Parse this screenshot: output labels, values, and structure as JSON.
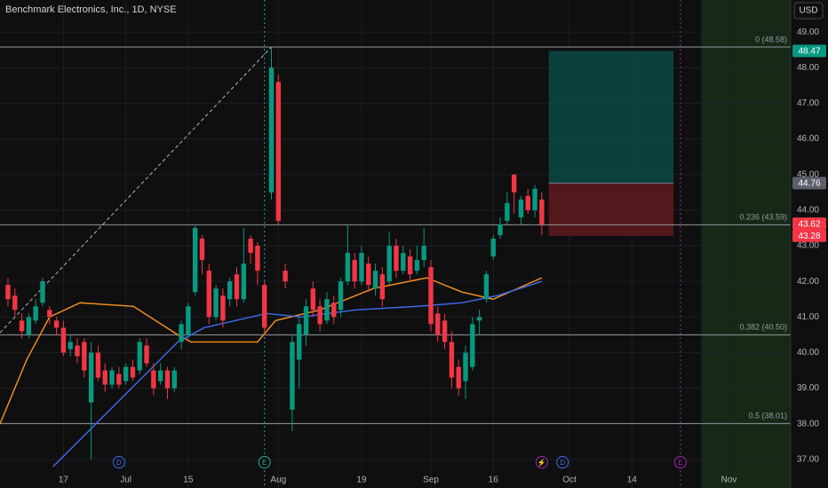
{
  "chart_data": {
    "type": "candlestick",
    "title": "Benchmark Electronics, Inc., 1D, NYSE",
    "currency": "USD",
    "up_color": "#089981",
    "down_color": "#f23645",
    "xlim": [
      -1.15,
      112.9
    ],
    "ylim": [
      36.2,
      49.9
    ],
    "xticks": [
      {
        "value": 8,
        "label": "17"
      },
      {
        "value": 17,
        "label": "Jul"
      },
      {
        "value": 26,
        "label": "15"
      },
      {
        "value": 39,
        "label": "Aug"
      },
      {
        "value": 51,
        "label": "19"
      },
      {
        "value": 61,
        "label": "Sep"
      },
      {
        "value": 70,
        "label": "16"
      },
      {
        "value": 81,
        "label": "Oct"
      },
      {
        "value": 90,
        "label": "14"
      },
      {
        "value": 104,
        "label": "Nov"
      }
    ],
    "yticks": [
      {
        "value": 37,
        "label": "37.00"
      },
      {
        "value": 38,
        "label": "38.00"
      },
      {
        "value": 39,
        "label": "39.00"
      },
      {
        "value": 40,
        "label": "40.00"
      },
      {
        "value": 41,
        "label": "41.00"
      },
      {
        "value": 42,
        "label": "42.00"
      },
      {
        "value": 43,
        "label": "43.00"
      },
      {
        "value": 44,
        "label": "44.00"
      },
      {
        "value": 45,
        "label": "45.00"
      },
      {
        "value": 46,
        "label": "46.00"
      },
      {
        "value": 47,
        "label": "47.00"
      },
      {
        "value": 48,
        "label": "48.00"
      },
      {
        "value": 49,
        "label": "49.00"
      }
    ],
    "grid": true,
    "open": [
      41.9,
      41.6,
      40.9,
      40.5,
      40.9,
      41.4,
      41.2,
      40.9,
      40.7,
      40.1,
      40.2,
      40.3,
      38.6,
      40.0,
      39.5,
      39.1,
      39.4,
      39.2,
      39.6,
      39.5,
      40.2,
      39.5,
      39.2,
      39.5,
      39.0,
      40.3,
      40.5,
      41.7,
      43.2,
      42.3,
      41.0,
      41.6,
      41.5,
      42.2,
      41.5,
      43.2,
      43.0,
      41.9,
      44.5,
      47.6,
      42.3,
      38.4,
      39.8,
      40.5,
      41.8,
      41.3,
      40.9,
      41.4,
      41.2,
      42.0,
      42.6,
      42.0,
      42.5,
      41.8,
      42.2,
      42.0,
      43.0,
      42.3,
      42.7,
      42.3,
      42.6,
      42.4,
      41.1,
      40.9,
      40.3,
      39.6,
      39.2,
      39.6,
      40.9,
      41.5,
      42.7,
      43.3,
      43.7,
      45.0,
      43.8,
      44.4,
      44.0,
      44.3
    ],
    "high": [
      42.1,
      41.8,
      41.1,
      41.1,
      41.5,
      42.1,
      41.3,
      41.0,
      40.9,
      40.5,
      40.4,
      40.4,
      40.3,
      40.2,
      39.7,
      39.6,
      39.6,
      39.7,
      39.8,
      40.4,
      40.4,
      39.7,
      39.7,
      39.6,
      39.6,
      40.9,
      41.4,
      43.6,
      43.3,
      42.5,
      41.9,
      41.8,
      42.1,
      42.4,
      43.5,
      43.3,
      43.1,
      42.0,
      48.58,
      47.8,
      42.5,
      40.5,
      41.0,
      41.5,
      42.0,
      41.5,
      41.7,
      41.6,
      42.1,
      43.6,
      42.8,
      43.0,
      42.7,
      42.5,
      42.4,
      43.4,
      43.2,
      43.0,
      42.9,
      43.0,
      43.5,
      42.6,
      41.3,
      41.1,
      40.6,
      39.8,
      40.2,
      41.0,
      41.2,
      42.3,
      43.3,
      43.8,
      44.5,
      45.0,
      44.4,
      44.6,
      44.7,
      44.5
    ],
    "low": [
      41.3,
      41.0,
      40.4,
      40.4,
      40.8,
      41.3,
      40.8,
      40.5,
      39.9,
      39.9,
      39.7,
      39.3,
      37.0,
      39.2,
      38.9,
      39.0,
      39.0,
      39.1,
      39.2,
      39.4,
      39.6,
      38.8,
      39.1,
      38.7,
      38.9,
      40.1,
      40.4,
      41.6,
      42.2,
      40.8,
      40.9,
      40.7,
      41.3,
      41.3,
      41.4,
      42.5,
      41.9,
      40.5,
      44.3,
      43.6,
      41.8,
      37.8,
      39.0,
      40.2,
      41.0,
      40.6,
      40.8,
      40.8,
      41.0,
      41.9,
      41.8,
      41.9,
      41.7,
      41.6,
      41.3,
      41.9,
      42.1,
      42.2,
      42.0,
      42.2,
      42.4,
      40.6,
      40.3,
      40.1,
      39.0,
      38.8,
      38.7,
      39.5,
      40.5,
      41.4,
      42.6,
      43.2,
      43.6,
      43.9,
      43.6,
      43.9,
      43.8,
      43.3
    ],
    "close": [
      41.5,
      41.2,
      40.6,
      41.0,
      41.3,
      42.0,
      41.0,
      40.7,
      40.0,
      40.3,
      39.9,
      39.5,
      40.0,
      39.3,
      39.1,
      39.5,
      39.1,
      39.6,
      39.3,
      40.3,
      39.7,
      39.0,
      39.5,
      39.0,
      39.5,
      40.8,
      41.3,
      43.5,
      42.6,
      41.0,
      41.8,
      40.9,
      42.0,
      41.5,
      42.5,
      42.8,
      42.3,
      40.7,
      48.0,
      43.7,
      42.0,
      40.3,
      40.8,
      41.3,
      41.2,
      40.8,
      41.5,
      41.0,
      42.0,
      42.8,
      42.0,
      42.8,
      41.9,
      42.3,
      41.5,
      43.0,
      42.3,
      42.8,
      42.2,
      42.6,
      43.0,
      40.8,
      40.5,
      40.3,
      39.3,
      39.0,
      40.0,
      40.8,
      41.0,
      42.2,
      43.2,
      43.6,
      44.2,
      44.5,
      44.3,
      44.0,
      44.6,
      43.6
    ],
    "series": [
      {
        "color": "#f7931e",
        "x": [
          -1.15,
          2.7,
          6,
          10.4,
          18.1,
          24.5,
          26.4,
          36,
          38.6,
          45,
          52.7,
          60.4,
          65.5,
          70,
          77
        ],
        "values": [
          38.0,
          39.8,
          41.0,
          41.4,
          41.3,
          40.5,
          40.3,
          40.3,
          40.9,
          41.2,
          41.8,
          42.1,
          41.7,
          41.5,
          42.1
        ]
      },
      {
        "color": "#3d6cf0",
        "x": [
          6.5,
          24.5,
          28.3,
          37.3,
          42.4,
          50.1,
          59.1,
          65.5,
          70.6,
          77
        ],
        "values": [
          36.8,
          40.3,
          40.7,
          41.1,
          41.0,
          41.2,
          41.3,
          41.4,
          41.6,
          42.0
        ]
      }
    ],
    "trend_line": {
      "x": [
        -1.15,
        38
      ],
      "values": [
        40.56,
        48.58
      ]
    },
    "fib_levels": [
      {
        "label": "0 (48.58)",
        "value": 48.58
      },
      {
        "label": "0.236 (43.59)",
        "value": 43.59
      },
      {
        "label": "0.382 (40.50)",
        "value": 40.5
      },
      {
        "label": "0.5 (38.01)",
        "value": 38.01
      }
    ],
    "position": {
      "x": [
        78,
        96
      ],
      "target": 48.47,
      "entry": 44.76,
      "stop": 43.28
    },
    "price_labels": [
      {
        "value": 48.47,
        "color": "#089981"
      },
      {
        "value": 44.76,
        "color": "#5d606b"
      },
      {
        "value": 43.62,
        "color": "#f23645"
      },
      {
        "value": 43.28,
        "color": "#f23645"
      }
    ],
    "vlines": [
      {
        "x": 37,
        "color": "#26a69a"
      },
      {
        "x": 97,
        "color": "#9c27b0"
      }
    ],
    "future_zone": [
      100,
      112.9
    ],
    "events": [
      {
        "x": 16,
        "label": "D",
        "color": "#3d6cf0"
      },
      {
        "x": 37,
        "label": "E",
        "color": "#26a69a"
      },
      {
        "x": 77,
        "label": "⚡",
        "color": "#9c27b0"
      },
      {
        "x": 80,
        "label": "D",
        "color": "#3d6cf0"
      },
      {
        "x": 97,
        "label": "E",
        "color": "#9c27b0"
      }
    ]
  }
}
